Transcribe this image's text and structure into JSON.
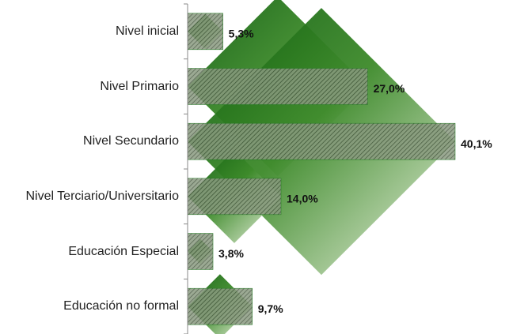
{
  "chart_data": {
    "type": "hbar",
    "categories": [
      "Nivel inicial",
      "Nivel Primario",
      "Nivel Secundario",
      "Nivel Terciario/Universitario",
      "Educación Especial",
      "Educación no formal"
    ],
    "values": [
      5.3,
      27.0,
      40.1,
      14.0,
      3.8,
      9.7
    ],
    "value_labels": [
      "5,3%",
      "27,0%",
      "40,1%",
      "14,0%",
      "3,8%",
      "9,7%"
    ],
    "color": "#1f7a1f"
  }
}
